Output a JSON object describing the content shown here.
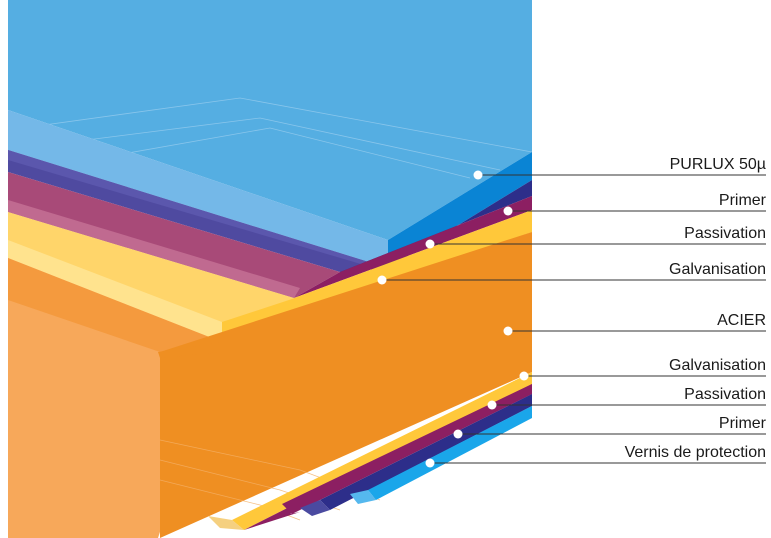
{
  "diagram": {
    "layers_top": [
      {
        "id": "purlux",
        "label": "PURLUX 50µ",
        "color_front": "#6bb4e6",
        "color_side": "#0a84d4"
      },
      {
        "id": "primer",
        "label": "Primer",
        "color_front": "#4f4aa0",
        "color_side": "#2d2e8a"
      },
      {
        "id": "passivation",
        "label": "Passivation",
        "color_front": "#b0507a",
        "color_side": "#8c1f62"
      },
      {
        "id": "galvanisation",
        "label": "Galvanisation",
        "color_front": "#ffd56a",
        "color_side": "#ffc83a"
      }
    ],
    "core": {
      "id": "acier",
      "label": "ACIER",
      "color_front": "#f7a85a",
      "color_side": "#ef8f22"
    },
    "layers_bottom": [
      {
        "id": "galvanisation-bottom",
        "label": "Galvanisation",
        "color_side": "#ffc83a"
      },
      {
        "id": "passivation-bottom",
        "label": "Passivation",
        "color_side": "#8c1f62"
      },
      {
        "id": "primer-bottom",
        "label": "Primer",
        "color_side": "#2d2e8a"
      },
      {
        "id": "vernis",
        "label": "Vernis de protection",
        "color_side": "#1aa6ea"
      }
    ]
  }
}
